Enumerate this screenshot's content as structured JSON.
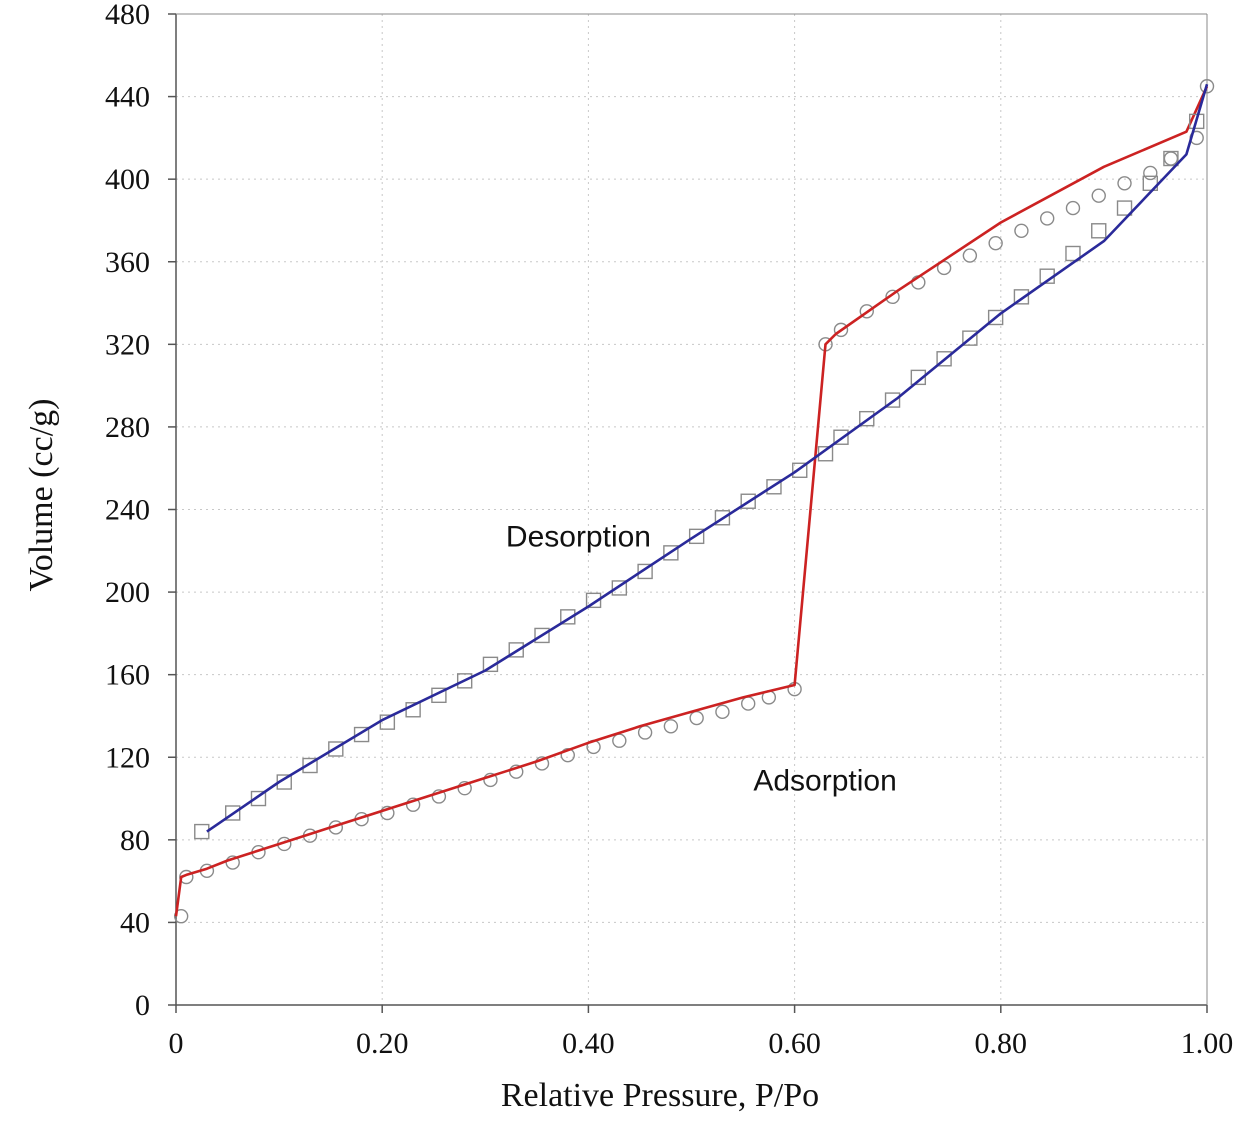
{
  "chart_data": {
    "type": "line",
    "title": "",
    "xlabel": "Relative Pressure, P/Po",
    "ylabel": "Volume (cc/g)",
    "xlim": [
      0,
      1.0
    ],
    "ylim": [
      0,
      480
    ],
    "xticks": [
      0,
      0.2,
      0.4,
      0.6,
      0.8,
      1.0
    ],
    "xtick_labels": [
      "0",
      "0.20",
      "0.40",
      "0.60",
      "0.80",
      "1.00"
    ],
    "yticks": [
      0,
      40,
      80,
      120,
      160,
      200,
      240,
      280,
      320,
      360,
      400,
      440,
      480
    ],
    "ytick_labels": [
      "0",
      "40",
      "80",
      "120",
      "160",
      "200",
      "240",
      "280",
      "320",
      "360",
      "400",
      "440",
      "480"
    ],
    "grid": true,
    "annotations": [
      {
        "text": "Desorption",
        "x": 0.32,
        "y": 222
      },
      {
        "text": "Adsorption",
        "x": 0.56,
        "y": 104
      }
    ],
    "series": [
      {
        "name": "Adsorption",
        "color": "#cc2222",
        "marker": "circle",
        "line_x": [
          0.0,
          0.005,
          0.01,
          0.03,
          0.05,
          0.1,
          0.15,
          0.2,
          0.25,
          0.3,
          0.35,
          0.4,
          0.45,
          0.5,
          0.55,
          0.6,
          0.63,
          0.64,
          0.7,
          0.8,
          0.9,
          0.98,
          1.0
        ],
        "line_y": [
          43,
          62,
          63,
          66,
          70,
          78,
          86,
          94,
          102,
          110,
          118,
          127,
          135,
          142,
          149,
          155,
          320,
          325,
          346,
          379,
          406,
          423,
          445
        ],
        "points_x": [
          0.005,
          0.01,
          0.03,
          0.055,
          0.08,
          0.105,
          0.13,
          0.155,
          0.18,
          0.205,
          0.23,
          0.255,
          0.28,
          0.305,
          0.33,
          0.355,
          0.38,
          0.405,
          0.43,
          0.455,
          0.48,
          0.505,
          0.53,
          0.555,
          0.575,
          0.6,
          0.63,
          0.645,
          0.67,
          0.695,
          0.72,
          0.745,
          0.77,
          0.795,
          0.82,
          0.845,
          0.87,
          0.895,
          0.92,
          0.945,
          0.965,
          0.99,
          1.0
        ],
        "points_y": [
          43,
          62,
          65,
          69,
          74,
          78,
          82,
          86,
          90,
          93,
          97,
          101,
          105,
          109,
          113,
          117,
          121,
          125,
          128,
          132,
          135,
          139,
          142,
          146,
          149,
          153,
          320,
          327,
          336,
          343,
          350,
          357,
          363,
          369,
          375,
          381,
          386,
          392,
          398,
          403,
          410,
          420,
          445
        ]
      },
      {
        "name": "Desorption",
        "color": "#2a2a9a",
        "marker": "square",
        "line_x": [
          0.03,
          0.1,
          0.2,
          0.3,
          0.4,
          0.5,
          0.6,
          0.7,
          0.8,
          0.9,
          0.98,
          1.0
        ],
        "line_y": [
          84,
          108,
          138,
          162,
          193,
          226,
          258,
          294,
          335,
          370,
          412,
          446
        ],
        "points_x": [
          0.025,
          0.055,
          0.08,
          0.105,
          0.13,
          0.155,
          0.18,
          0.205,
          0.23,
          0.255,
          0.28,
          0.305,
          0.33,
          0.355,
          0.38,
          0.405,
          0.43,
          0.455,
          0.48,
          0.505,
          0.53,
          0.555,
          0.58,
          0.605,
          0.63,
          0.645,
          0.67,
          0.695,
          0.72,
          0.745,
          0.77,
          0.795,
          0.82,
          0.845,
          0.87,
          0.895,
          0.92,
          0.945,
          0.965,
          0.99
        ],
        "points_y": [
          84,
          93,
          100,
          108,
          116,
          124,
          131,
          137,
          143,
          150,
          157,
          165,
          172,
          179,
          188,
          196,
          202,
          210,
          219,
          227,
          236,
          244,
          251,
          259,
          267,
          275,
          284,
          293,
          304,
          313,
          323,
          333,
          343,
          353,
          364,
          375,
          386,
          398,
          410,
          428
        ]
      }
    ]
  }
}
